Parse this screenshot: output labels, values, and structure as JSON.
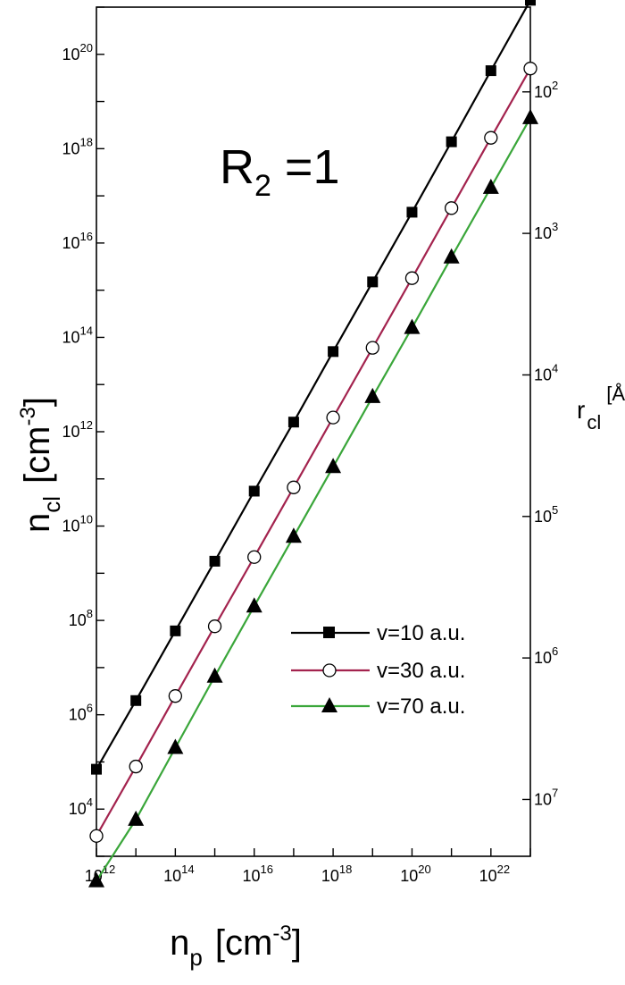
{
  "chart_data": {
    "type": "line",
    "xscale": "log",
    "yscale": "log",
    "xlim": [
      1000000000000.0,
      1e+23
    ],
    "ylim": [
      1000.0,
      1e+21
    ],
    "grid": false,
    "legend_placement": "center-right",
    "xlabel": {
      "main": "n",
      "sub": "p",
      "unit": "cm",
      "exp": "-3"
    },
    "ylabel": {
      "main": "n",
      "sub": "cl",
      "unit": "cm",
      "exp": "-3"
    },
    "right_axis": {
      "label_main": "r",
      "label_sub": "cl",
      "unit": "Å",
      "ticks": [
        {
          "label": "10",
          "exp": "2",
          "at_left_value": 1.6e+19
        },
        {
          "label": "10",
          "exp": "3",
          "at_left_value": 1.6e+16
        },
        {
          "label": "10",
          "exp": "4",
          "at_left_value": 16000000000000.0
        },
        {
          "label": "10",
          "exp": "5",
          "at_left_value": 16000000000.0
        },
        {
          "label": "10",
          "exp": "6",
          "at_left_value": 16000000.0
        },
        {
          "label": "10",
          "exp": "7",
          "at_left_value": 16000.0
        }
      ]
    },
    "x_ticks": [
      {
        "label": "10",
        "exp": "12",
        "value": 1000000000000.0
      },
      {
        "label": "10",
        "exp": "14",
        "value": 100000000000000.0
      },
      {
        "label": "10",
        "exp": "16",
        "value": 1e+16
      },
      {
        "label": "10",
        "exp": "18",
        "value": 1e+18
      },
      {
        "label": "10",
        "exp": "20",
        "value": 1e+20
      },
      {
        "label": "10",
        "exp": "22",
        "value": 1e+22
      }
    ],
    "y_ticks": [
      {
        "label": "10",
        "exp": "4",
        "value": 10000.0
      },
      {
        "label": "10",
        "exp": "6",
        "value": 1000000.0
      },
      {
        "label": "10",
        "exp": "8",
        "value": 100000000.0
      },
      {
        "label": "10",
        "exp": "10",
        "value": 10000000000.0
      },
      {
        "label": "10",
        "exp": "12",
        "value": 1000000000000.0
      },
      {
        "label": "10",
        "exp": "14",
        "value": 100000000000000.0
      },
      {
        "label": "10",
        "exp": "16",
        "value": 1e+16
      },
      {
        "label": "10",
        "exp": "18",
        "value": 1e+18
      },
      {
        "label": "10",
        "exp": "20",
        "value": 1e+20
      }
    ],
    "annotation": {
      "main": "R",
      "sub": "2",
      "rest": " =1"
    },
    "series": [
      {
        "name": "v=10 a.u.",
        "color": "#000000",
        "marker": "square",
        "x": [
          1000000000000.0,
          10000000000000.0,
          100000000000000.0,
          1000000000000000.0,
          1e+16,
          1e+17,
          1e+18,
          1e+19,
          1e+20,
          1e+21,
          1e+22,
          1e+23
        ],
        "y": [
          70000.0,
          2000000.0,
          60000000.0,
          1800000000.0,
          55000000000.0,
          1600000000000.0,
          50000000000000.0,
          1500000000000000.0,
          4.5e+16,
          1.4e+18,
          4.5e+19,
          1.4e+21
        ]
      },
      {
        "name": "v=30 a.u.",
        "color": "#a3234e",
        "marker": "circle",
        "x": [
          1000000000000.0,
          10000000000000.0,
          100000000000000.0,
          1000000000000000.0,
          1e+16,
          1e+17,
          1e+18,
          1e+19,
          1e+20,
          1e+21,
          1e+22,
          1e+23
        ],
        "y": [
          2700.0,
          80000.0,
          2500000.0,
          75000000.0,
          2200000000.0,
          66000000000.0,
          2000000000000.0,
          60000000000000.0,
          1800000000000000.0,
          5.5e+16,
          1.7e+18,
          5e+19
        ]
      },
      {
        "name": "v=70 a.u.",
        "color": "#3aa63a",
        "marker": "triangle",
        "x": [
          1000000000000.0,
          10000000000000.0,
          100000000000000.0,
          1000000000000000.0,
          1e+16,
          1e+17,
          1e+18,
          1e+19,
          1e+20,
          1e+21,
          1e+22,
          1e+23
        ],
        "y": [
          300,
          6000.0,
          200000.0,
          6500000.0,
          200000000.0,
          6000000000.0,
          180000000000.0,
          5500000000000.0,
          160000000000000.0,
          5000000000000000.0,
          1.5e+17,
          4.5e+18
        ]
      }
    ]
  }
}
